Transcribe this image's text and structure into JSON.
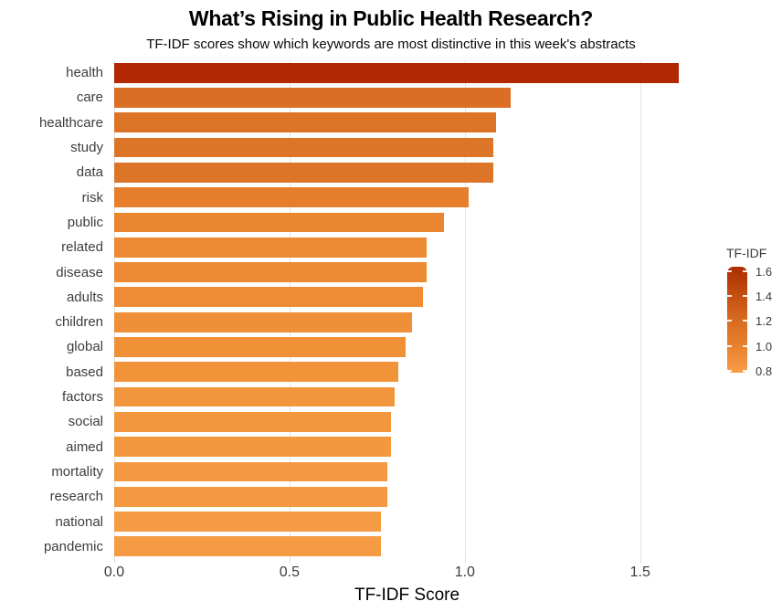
{
  "title": "What’s Rising in Public Health Research?",
  "subtitle": "TF-IDF scores show which keywords are most distinctive in this week's abstracts",
  "chart_data": {
    "type": "bar",
    "orientation": "horizontal",
    "title": "What’s Rising in Public Health Research?",
    "subtitle": "TF-IDF scores show which keywords are most distinctive in this week's abstracts",
    "xlabel": "TF-IDF Score",
    "ylabel": "",
    "xlim": [
      0,
      1.67
    ],
    "x_ticks": [
      "0.0",
      "0.5",
      "1.0",
      "1.5"
    ],
    "grid": "vertical gridlines at x ticks, no axis lines",
    "categories": [
      "health",
      "care",
      "healthcare",
      "study",
      "data",
      "risk",
      "public",
      "related",
      "disease",
      "adults",
      "children",
      "global",
      "based",
      "factors",
      "social",
      "aimed",
      "mortality",
      "research",
      "national",
      "pandemic"
    ],
    "values": [
      1.61,
      1.13,
      1.09,
      1.08,
      1.08,
      1.01,
      0.94,
      0.89,
      0.89,
      0.88,
      0.85,
      0.83,
      0.81,
      0.8,
      0.79,
      0.79,
      0.78,
      0.78,
      0.76,
      0.76
    ],
    "bar_colors": [
      "#b22802",
      "#d96e24",
      "#dc7427",
      "#dd7528",
      "#dd7528",
      "#e67e2b",
      "#ea8530",
      "#ed8933",
      "#ed8a33",
      "#ee8c35",
      "#ef8f37",
      "#f09138",
      "#f19339",
      "#f2963d",
      "#f3973e",
      "#f3983f",
      "#f49941",
      "#f49941",
      "#f59b43",
      "#f59b43"
    ],
    "legend": {
      "title": "TF-IDF",
      "position": "right",
      "tick_labels": [
        "1.6",
        "1.4",
        "1.2",
        "1.0",
        "0.8"
      ],
      "gradient_colors": [
        "#aa2e02",
        "#c24c0f",
        "#d76b21",
        "#e8822e",
        "#f89c49"
      ]
    }
  }
}
